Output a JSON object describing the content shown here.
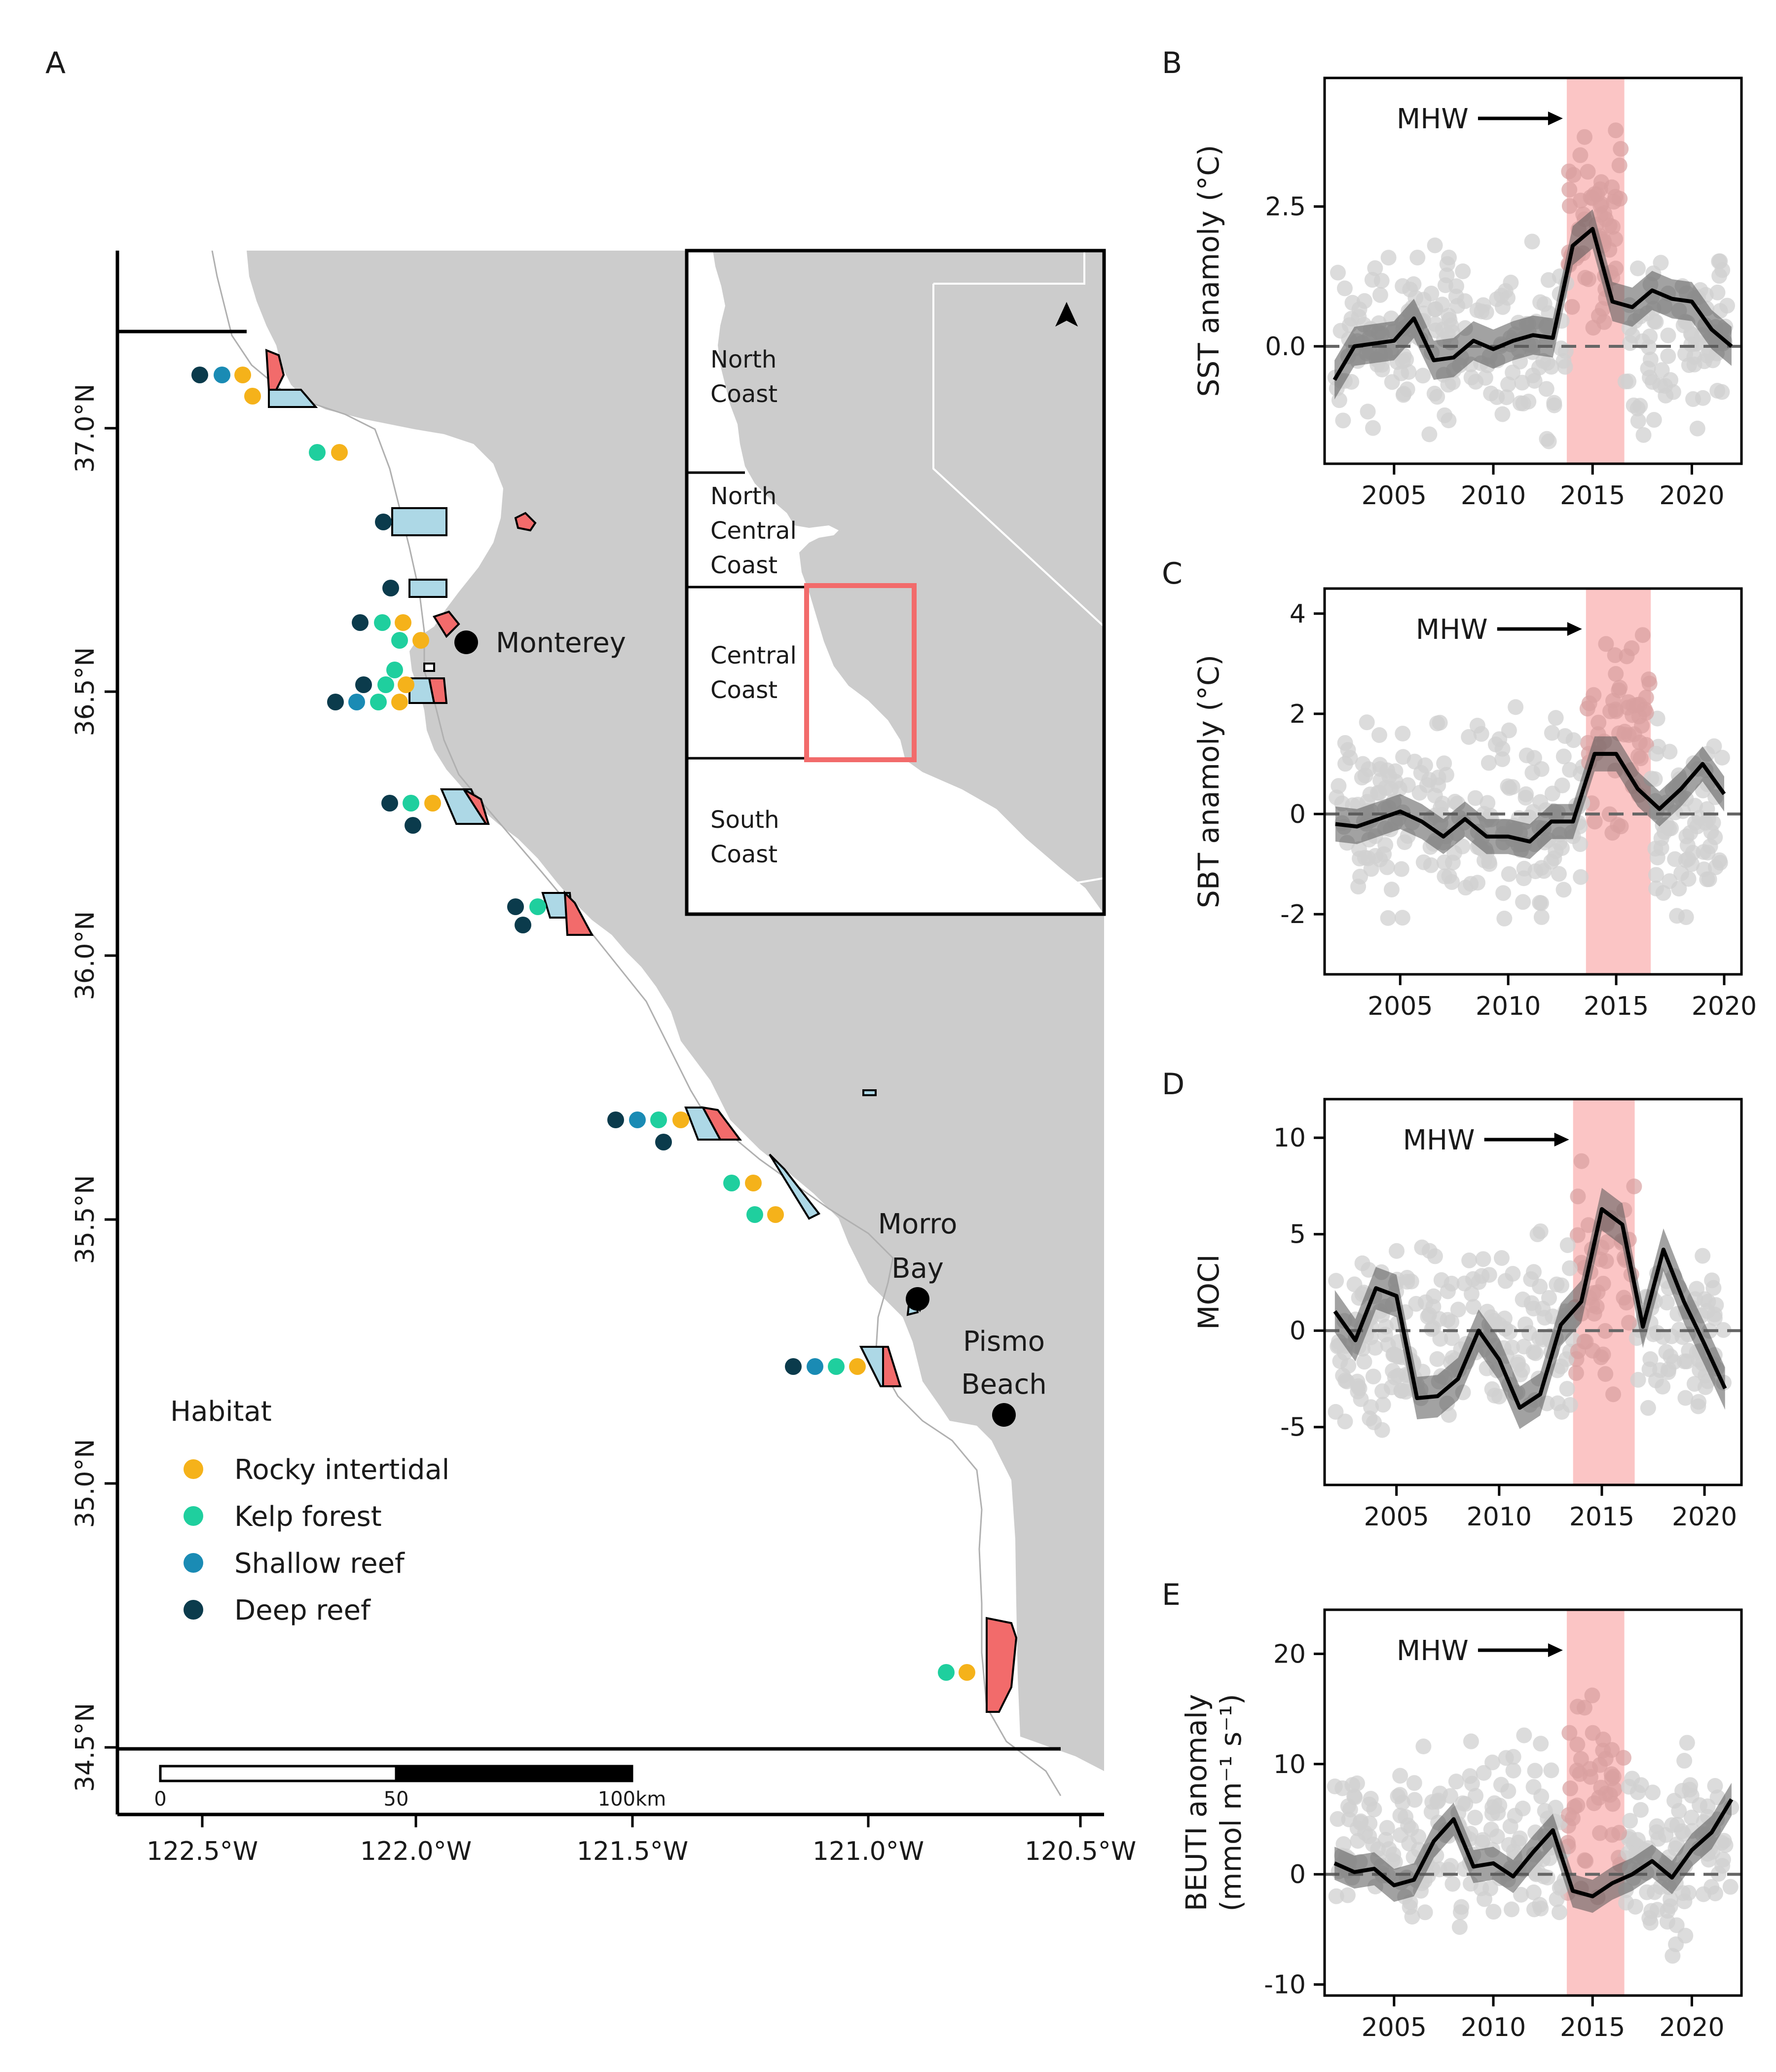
{
  "figure": {
    "panel_a_label": "A",
    "panel_labels": [
      "B",
      "C",
      "D",
      "E"
    ]
  },
  "map": {
    "cities": [
      "Monterey",
      "Morro Bay",
      "Pismo Beach"
    ],
    "lat_ticks": [
      "37.0°N",
      "36.5°N",
      "36.0°N",
      "35.5°N",
      "35.0°N",
      "34.5°N"
    ],
    "lon_ticks": [
      "122.5°W",
      "122.0°W",
      "121.5°W",
      "121.0°W",
      "120.5°W"
    ],
    "scalebar": [
      "0",
      "50",
      "100km"
    ],
    "legend": {
      "title": "Habitat",
      "items": [
        {
          "label": "Rocky intertidal",
          "color": "#F5B21A"
        },
        {
          "label": "Kelp forest",
          "color": "#1FCF9E"
        },
        {
          "label": "Shallow reef",
          "color": "#1A8BB4"
        },
        {
          "label": "Deep reef",
          "color": "#0B3B4C"
        }
      ]
    },
    "inset_regions": [
      "North Coast",
      "North Central Coast",
      "Central Coast",
      "South Coast"
    ],
    "colors": {
      "land": "#CCCCCC",
      "mpa_red": "#F26B6B",
      "mpa_blue": "#ADD8E6",
      "inset_box": "#F26B6B"
    }
  },
  "chart_data": [
    {
      "panel": "B",
      "type": "line",
      "ylabel": "SST anamoly (°C)",
      "annotation": "MHW",
      "xlim": [
        2001.5,
        2022.5
      ],
      "ylim": [
        -2.1,
        4.8
      ],
      "xticks": [
        2005,
        2010,
        2015,
        2020
      ],
      "yticks": [
        0.0,
        2.5
      ],
      "ytick_labels": [
        "0.0",
        "2.5"
      ],
      "mhw_span": [
        2013.7,
        2016.6
      ],
      "x": [
        2002,
        2003,
        2004,
        2005,
        2006,
        2007,
        2008,
        2009,
        2010,
        2011,
        2012,
        2013,
        2014,
        2015,
        2016,
        2017,
        2018,
        2019,
        2020,
        2021,
        2022
      ],
      "y": [
        -0.6,
        0.0,
        0.05,
        0.1,
        0.5,
        -0.25,
        -0.2,
        0.1,
        -0.05,
        0.1,
        0.2,
        0.15,
        1.8,
        2.1,
        0.8,
        0.7,
        1.0,
        0.85,
        0.8,
        0.3,
        0.0
      ],
      "ci_halfwidth": 0.35,
      "scatter_range": [
        -2.0,
        2.3
      ],
      "scatter_mhw_range": [
        -0.5,
        4.5
      ]
    },
    {
      "panel": "C",
      "type": "line",
      "ylabel": "SBT anamoly (°C)",
      "annotation": "MHW",
      "xlim": [
        2001.5,
        2020.8
      ],
      "ylim": [
        -3.2,
        4.5
      ],
      "xticks": [
        2005,
        2010,
        2015,
        2020
      ],
      "yticks": [
        -2,
        0,
        2,
        4
      ],
      "ytick_labels": [
        "-2",
        "0",
        "2",
        "4"
      ],
      "mhw_span": [
        2013.6,
        2016.6
      ],
      "x": [
        2002,
        2003,
        2004,
        2005,
        2006,
        2007,
        2008,
        2009,
        2010,
        2011,
        2012,
        2013,
        2014,
        2015,
        2016,
        2017,
        2018,
        2019,
        2020
      ],
      "y": [
        -0.2,
        -0.25,
        -0.1,
        0.05,
        -0.15,
        -0.45,
        -0.1,
        -0.45,
        -0.45,
        -0.55,
        -0.15,
        -0.15,
        1.2,
        1.2,
        0.5,
        0.1,
        0.5,
        1.0,
        0.4
      ],
      "ci_halfwidth": 0.35,
      "scatter_range": [
        -2.8,
        2.5
      ],
      "scatter_mhw_range": [
        -1.0,
        4.2
      ]
    },
    {
      "panel": "D",
      "type": "line",
      "ylabel": "MOCI",
      "annotation": "MHW",
      "xlim": [
        2001.5,
        2021.8
      ],
      "ylim": [
        -8,
        12
      ],
      "xticks": [
        2005,
        2010,
        2015,
        2020
      ],
      "yticks": [
        -5,
        0,
        5,
        10
      ],
      "ytick_labels": [
        "-5",
        "0",
        "5",
        "10"
      ],
      "mhw_span": [
        2013.6,
        2016.6
      ],
      "x": [
        2002,
        2003,
        2004,
        2005,
        2006,
        2007,
        2008,
        2009,
        2010,
        2011,
        2012,
        2013,
        2014,
        2015,
        2016,
        2017,
        2018,
        2019,
        2020,
        2021
      ],
      "y": [
        1.0,
        -0.5,
        2.2,
        1.8,
        -3.5,
        -3.4,
        -2.5,
        0.0,
        -1.5,
        -4.0,
        -3.3,
        0.3,
        1.5,
        6.3,
        5.5,
        0.2,
        4.2,
        1.5,
        -0.7,
        -3.0
      ],
      "ci_halfwidth": 1.1,
      "scatter_range": [
        -7.0,
        6.0
      ],
      "scatter_mhw_range": [
        -6.0,
        11.0
      ]
    },
    {
      "panel": "E",
      "type": "line",
      "ylabel": "BEUTI anomaly",
      "ylabel2": "(mmol m⁻¹ s⁻¹)",
      "annotation": "MHW",
      "xlim": [
        2001.5,
        2022.5
      ],
      "ylim": [
        -11,
        24
      ],
      "xticks": [
        2005,
        2010,
        2015,
        2020
      ],
      "yticks": [
        -10,
        0,
        10,
        20
      ],
      "ytick_labels": [
        "-10",
        "0",
        "10",
        "20"
      ],
      "mhw_span": [
        2013.7,
        2016.6
      ],
      "x": [
        2002,
        2003,
        2004,
        2005,
        2006,
        2007,
        2008,
        2009,
        2010,
        2011,
        2012,
        2013,
        2014,
        2015,
        2016,
        2017,
        2018,
        2019,
        2020,
        2021,
        2022
      ],
      "y": [
        1.0,
        0.2,
        0.5,
        -1.0,
        -0.5,
        3.0,
        5.0,
        0.7,
        1.0,
        -0.2,
        2.0,
        4.0,
        -1.5,
        -2.0,
        -0.8,
        0.0,
        1.2,
        -0.3,
        2.2,
        3.8,
        6.8
      ],
      "ci_halfwidth": 1.5,
      "scatter_range": [
        -9.0,
        15.0
      ],
      "scatter_mhw_range": [
        -9.0,
        22.0
      ]
    }
  ]
}
